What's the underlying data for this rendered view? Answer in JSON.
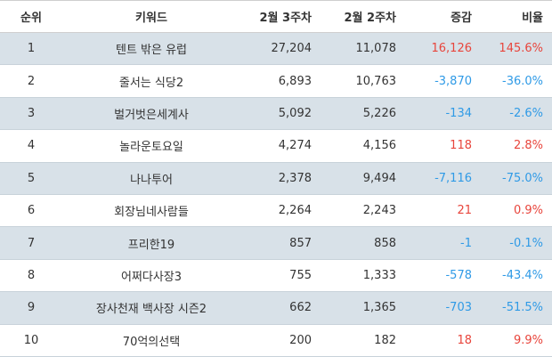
{
  "headers": {
    "rank": "순위",
    "keyword": "키워드",
    "week3": "2월 3주차",
    "week2": "2월 2주차",
    "change": "증감",
    "ratio": "비율"
  },
  "rows": [
    {
      "rank": "1",
      "keyword": "텐트 밖은 유럽",
      "week3": "27,204",
      "week2": "11,078",
      "change": "16,126",
      "ratio": "145.6%",
      "trend": "up"
    },
    {
      "rank": "2",
      "keyword": "줄서는 식당2",
      "week3": "6,893",
      "week2": "10,763",
      "change": "-3,870",
      "ratio": "-36.0%",
      "trend": "down"
    },
    {
      "rank": "3",
      "keyword": "벌거벗은세계사",
      "week3": "5,092",
      "week2": "5,226",
      "change": "-134",
      "ratio": "-2.6%",
      "trend": "down"
    },
    {
      "rank": "4",
      "keyword": "놀라운토요일",
      "week3": "4,274",
      "week2": "4,156",
      "change": "118",
      "ratio": "2.8%",
      "trend": "up"
    },
    {
      "rank": "5",
      "keyword": "나나투어",
      "week3": "2,378",
      "week2": "9,494",
      "change": "-7,116",
      "ratio": "-75.0%",
      "trend": "down"
    },
    {
      "rank": "6",
      "keyword": "회장님네사람들",
      "week3": "2,264",
      "week2": "2,243",
      "change": "21",
      "ratio": "0.9%",
      "trend": "up"
    },
    {
      "rank": "7",
      "keyword": "프리한19",
      "week3": "857",
      "week2": "858",
      "change": "-1",
      "ratio": "-0.1%",
      "trend": "down"
    },
    {
      "rank": "8",
      "keyword": "어쩌다사장3",
      "week3": "755",
      "week2": "1,333",
      "change": "-578",
      "ratio": "-43.4%",
      "trend": "down"
    },
    {
      "rank": "9",
      "keyword": "장사천재 백사장 시즌2",
      "week3": "662",
      "week2": "1,365",
      "change": "-703",
      "ratio": "-51.5%",
      "trend": "down"
    },
    {
      "rank": "10",
      "keyword": "70억의선택",
      "week3": "200",
      "week2": "182",
      "change": "18",
      "ratio": "9.9%",
      "trend": "up"
    }
  ],
  "colors": {
    "up": "#e8453c",
    "down": "#2f9ae6",
    "shaded_row": "#d8e1e8"
  }
}
